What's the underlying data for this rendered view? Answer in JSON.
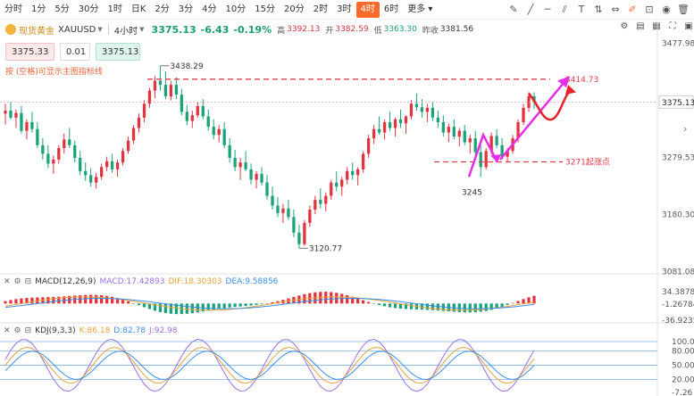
{
  "toolbar": {
    "timeframes": [
      "分时",
      "1分",
      "5分",
      "30分",
      "1时",
      "日K",
      "2分",
      "3分",
      "4分",
      "10分",
      "15分",
      "20分",
      "2时",
      "3时",
      "4时",
      "6时",
      "更多"
    ],
    "active_index": 14,
    "tool_icons": [
      "pencil-icon",
      "line-icon",
      "hline-icon",
      "parallel-icon",
      "text-icon",
      "measure-icon",
      "ruler-icon",
      "edit-icon",
      "lock-icon",
      "eye-icon",
      "trash-icon"
    ]
  },
  "header": {
    "symbol_cn": "现货黄金",
    "symbol": "XAUUSD",
    "period": "4小时",
    "last": "3375.13",
    "change": "-6.43",
    "change_pct": "-0.19%",
    "high_label": "高",
    "high": "3392.13",
    "open_label": "开",
    "open": "3382.59",
    "low_label": "低",
    "low": "3363.30",
    "prev_label": "昨收",
    "prev": "3381.56"
  },
  "trade": {
    "sell": "3375.33",
    "qty": "0.01",
    "buy": "3375.13"
  },
  "hint": "按 (空格)可显示主图指标线",
  "chart_data": {
    "type": "candlestick",
    "price_axis": [
      "3477.98",
      "3375.13",
      "3279.53",
      "3180.30",
      "3081.08"
    ],
    "annotations": {
      "high_label": "3438.29",
      "low_label": "3120.77",
      "swing_low": "3245",
      "resistance": "3414.73",
      "support": "3271起涨点"
    },
    "candles": [
      [
        3355,
        3372,
        3336,
        3360
      ],
      [
        3360,
        3375,
        3345,
        3348
      ],
      [
        3348,
        3362,
        3330,
        3356
      ],
      [
        3356,
        3368,
        3320,
        3325
      ],
      [
        3325,
        3345,
        3310,
        3340
      ],
      [
        3340,
        3358,
        3322,
        3328
      ],
      [
        3328,
        3340,
        3295,
        3300
      ],
      [
        3300,
        3312,
        3275,
        3285
      ],
      [
        3285,
        3300,
        3260,
        3268
      ],
      [
        3268,
        3282,
        3250,
        3275
      ],
      [
        3275,
        3300,
        3268,
        3295
      ],
      [
        3295,
        3320,
        3285,
        3310
      ],
      [
        3310,
        3330,
        3295,
        3300
      ],
      [
        3300,
        3308,
        3270,
        3278
      ],
      [
        3278,
        3290,
        3248,
        3255
      ],
      [
        3255,
        3270,
        3238,
        3248
      ],
      [
        3248,
        3260,
        3228,
        3235
      ],
      [
        3235,
        3252,
        3225,
        3245
      ],
      [
        3245,
        3268,
        3240,
        3262
      ],
      [
        3262,
        3280,
        3255,
        3272
      ],
      [
        3272,
        3285,
        3252,
        3258
      ],
      [
        3258,
        3275,
        3245,
        3270
      ],
      [
        3270,
        3295,
        3265,
        3290
      ],
      [
        3290,
        3315,
        3285,
        3308
      ],
      [
        3308,
        3335,
        3302,
        3330
      ],
      [
        3330,
        3355,
        3322,
        3348
      ],
      [
        3348,
        3378,
        3340,
        3372
      ],
      [
        3372,
        3400,
        3365,
        3395
      ],
      [
        3395,
        3420,
        3382,
        3412
      ],
      [
        3412,
        3438,
        3395,
        3405
      ],
      [
        3405,
        3428,
        3380,
        3385
      ],
      [
        3385,
        3412,
        3378,
        3405
      ],
      [
        3405,
        3418,
        3380,
        3388
      ],
      [
        3388,
        3398,
        3352,
        3358
      ],
      [
        3358,
        3370,
        3335,
        3342
      ],
      [
        3342,
        3360,
        3330,
        3352
      ],
      [
        3352,
        3375,
        3348,
        3368
      ],
      [
        3368,
        3380,
        3345,
        3350
      ],
      [
        3350,
        3362,
        3325,
        3332
      ],
      [
        3332,
        3345,
        3310,
        3318
      ],
      [
        3318,
        3335,
        3305,
        3328
      ],
      [
        3328,
        3340,
        3295,
        3300
      ],
      [
        3300,
        3312,
        3270,
        3278
      ],
      [
        3278,
        3292,
        3255,
        3262
      ],
      [
        3262,
        3278,
        3240,
        3270
      ],
      [
        3270,
        3290,
        3255,
        3258
      ],
      [
        3258,
        3268,
        3232,
        3240
      ],
      [
        3240,
        3255,
        3225,
        3250
      ],
      [
        3250,
        3262,
        3230,
        3235
      ],
      [
        3235,
        3248,
        3205,
        3212
      ],
      [
        3212,
        3228,
        3188,
        3195
      ],
      [
        3195,
        3210,
        3175,
        3182
      ],
      [
        3182,
        3198,
        3165,
        3190
      ],
      [
        3190,
        3205,
        3170,
        3175
      ],
      [
        3175,
        3188,
        3140,
        3148
      ],
      [
        3148,
        3162,
        3121,
        3128
      ],
      [
        3128,
        3170,
        3125,
        3165
      ],
      [
        3165,
        3195,
        3158,
        3188
      ],
      [
        3188,
        3212,
        3180,
        3205
      ],
      [
        3205,
        3225,
        3190,
        3198
      ],
      [
        3198,
        3218,
        3185,
        3212
      ],
      [
        3212,
        3240,
        3205,
        3235
      ],
      [
        3235,
        3255,
        3220,
        3228
      ],
      [
        3228,
        3245,
        3212,
        3240
      ],
      [
        3240,
        3262,
        3232,
        3255
      ],
      [
        3255,
        3270,
        3240,
        3248
      ],
      [
        3248,
        3262,
        3230,
        3258
      ],
      [
        3258,
        3290,
        3252,
        3285
      ],
      [
        3285,
        3318,
        3278,
        3312
      ],
      [
        3312,
        3335,
        3302,
        3328
      ],
      [
        3328,
        3350,
        3318,
        3322
      ],
      [
        3322,
        3345,
        3310,
        3340
      ],
      [
        3340,
        3358,
        3325,
        3330
      ],
      [
        3330,
        3348,
        3315,
        3345
      ],
      [
        3345,
        3362,
        3330,
        3338
      ],
      [
        3338,
        3352,
        3320,
        3350
      ],
      [
        3350,
        3378,
        3345,
        3372
      ],
      [
        3372,
        3390,
        3360,
        3366
      ],
      [
        3366,
        3380,
        3348,
        3358
      ],
      [
        3358,
        3372,
        3340,
        3365
      ],
      [
        3365,
        3375,
        3342,
        3348
      ],
      [
        3348,
        3360,
        3330,
        3340
      ],
      [
        3340,
        3352,
        3315,
        3322
      ],
      [
        3322,
        3338,
        3305,
        3332
      ],
      [
        3332,
        3345,
        3310,
        3315
      ],
      [
        3315,
        3330,
        3298,
        3325
      ],
      [
        3325,
        3335,
        3300,
        3305
      ],
      [
        3305,
        3318,
        3285,
        3312
      ],
      [
        3312,
        3325,
        3280,
        3288
      ],
      [
        3288,
        3300,
        3245,
        3262
      ],
      [
        3262,
        3295,
        3258,
        3290
      ],
      [
        3290,
        3322,
        3284,
        3316
      ],
      [
        3316,
        3328,
        3295,
        3300
      ],
      [
        3300,
        3312,
        3275,
        3280
      ],
      [
        3280,
        3295,
        3270,
        3290
      ],
      [
        3290,
        3318,
        3285,
        3312
      ],
      [
        3312,
        3345,
        3305,
        3340
      ],
      [
        3340,
        3372,
        3335,
        3365
      ],
      [
        3365,
        3392,
        3358,
        3385
      ],
      [
        3385,
        3392,
        3363,
        3375
      ]
    ]
  },
  "macd": {
    "title": "MACD(12,26,9)",
    "macd_label": "MACD:17.42893",
    "dif_label": "DIF:18.30303",
    "dea_label": "DEA:9.58856",
    "axis": [
      "34.38784",
      "-1.26784",
      "-36.92352"
    ]
  },
  "kdj": {
    "title": "KDJ(9,3,3)",
    "k_label": "K:86.18",
    "d_label": "D:82.78",
    "j_label": "J:92.98",
    "axis": [
      "100.00",
      "80.00",
      "50.00",
      "20.00",
      "-7.26"
    ]
  },
  "colors": {
    "up": "#e1343f",
    "down": "#1aa37a",
    "accent": "#ff6a2b",
    "arrow": "#e62ee8",
    "dash": "#e23b4a"
  }
}
